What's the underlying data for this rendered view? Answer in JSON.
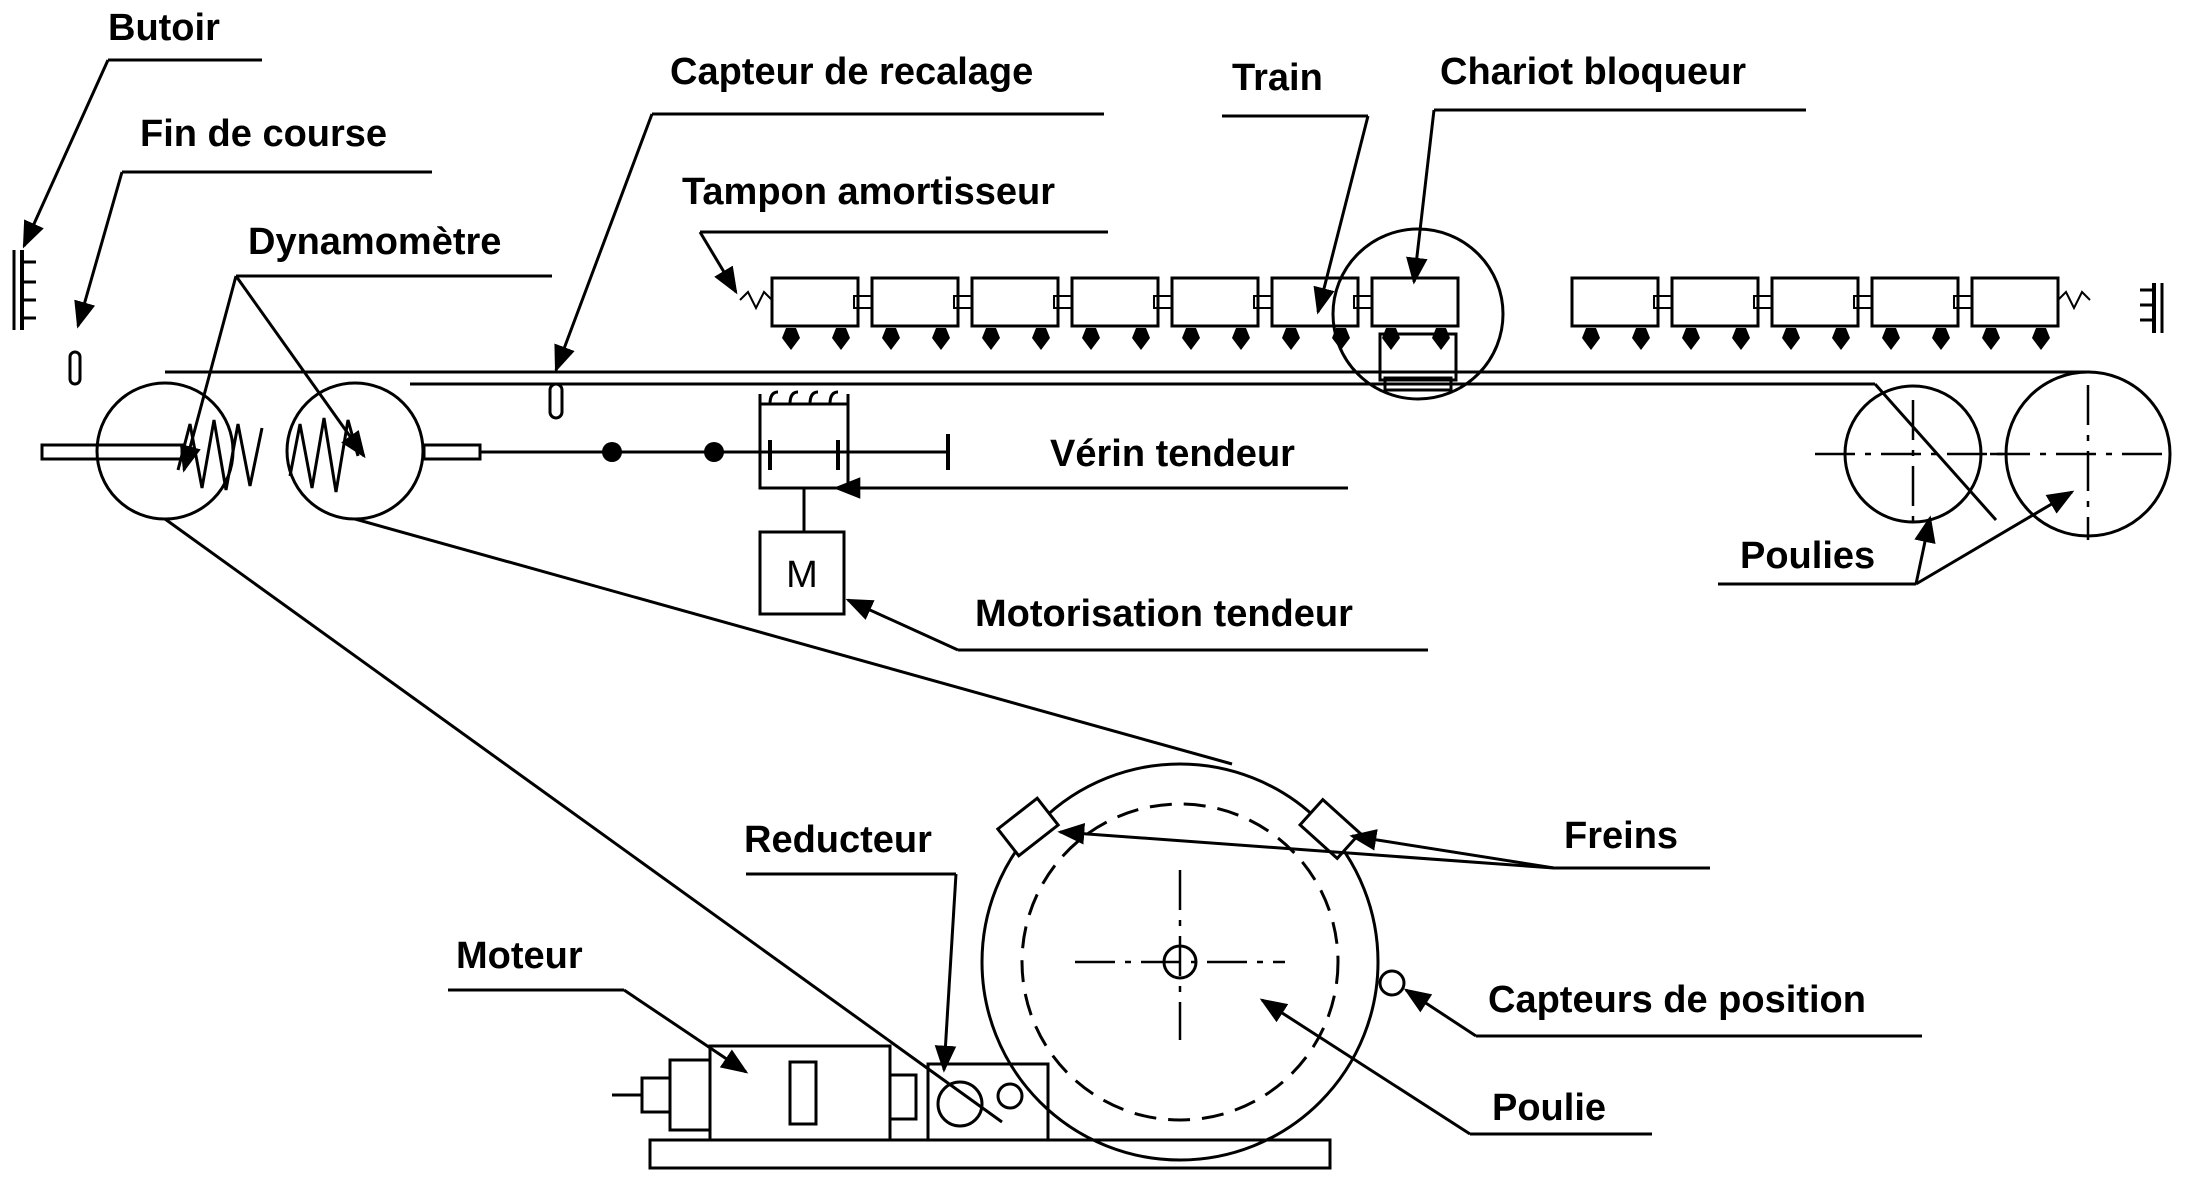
{
  "labels": {
    "butoir": "Butoir",
    "fin_de_course": "Fin de course",
    "capteur_recalage": "Capteur de recalage",
    "train": "Train",
    "chariot_bloqueur": "Chariot bloqueur",
    "tampon_amortisseur": "Tampon amortisseur",
    "dynamometre": "Dynamomètre",
    "verin_tendeur": "Vérin tendeur",
    "motorisation_tendeur": "Motorisation tendeur",
    "poulies": "Poulies",
    "freins": "Freins",
    "reducteur": "Reducteur",
    "moteur": "Moteur",
    "capteurs_position": "Capteurs de position",
    "poulie": "Poulie"
  },
  "motor_symbol": "M"
}
